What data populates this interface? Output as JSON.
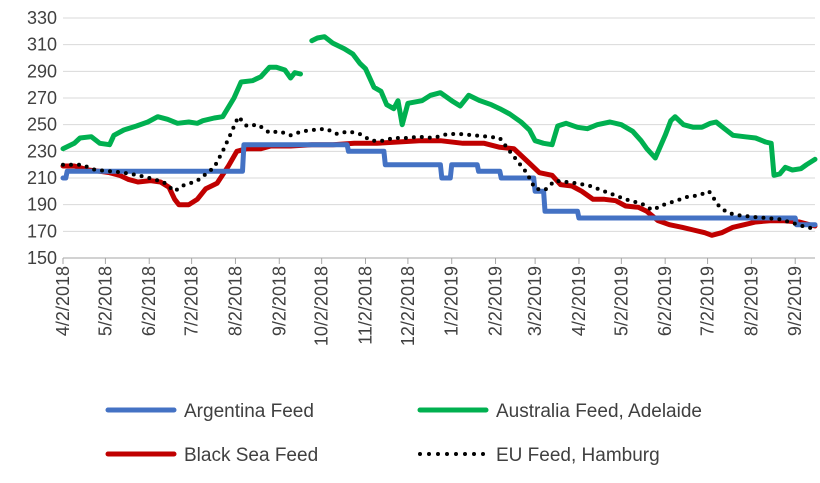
{
  "chart_data": {
    "type": "line",
    "title": "",
    "xlabel": "",
    "ylabel": "",
    "ylim": [
      150,
      330
    ],
    "yticks": [
      150,
      170,
      190,
      210,
      230,
      250,
      270,
      290,
      310,
      330
    ],
    "xlim": [
      "2018-04-02",
      "2019-09-16"
    ],
    "xtick_labels": [
      "4/2/2018",
      "5/2/2018",
      "6/2/2018",
      "7/2/2018",
      "8/2/2018",
      "9/2/2018",
      "10/2/2018",
      "11/2/2018",
      "12/2/2018",
      "1/2/2019",
      "2/2/2019",
      "3/2/2019",
      "4/2/2019",
      "5/2/2019",
      "6/2/2019",
      "7/2/2019",
      "8/2/2019",
      "9/2/2019"
    ],
    "xtick_dates": [
      "2018-04-02",
      "2018-05-02",
      "2018-06-02",
      "2018-07-02",
      "2018-08-02",
      "2018-09-02",
      "2018-10-02",
      "2018-11-02",
      "2018-12-02",
      "2019-01-02",
      "2019-02-02",
      "2019-03-02",
      "2019-04-02",
      "2019-05-02",
      "2019-06-02",
      "2019-07-02",
      "2019-08-02",
      "2019-09-02"
    ],
    "grid": "horizontal",
    "legend_position": "bottom",
    "series": [
      {
        "name": "Argentina Feed",
        "color": "#4472C4",
        "style": "solid",
        "points": [
          [
            "2018-04-02",
            210
          ],
          [
            "2018-04-04",
            210
          ],
          [
            "2018-04-05",
            215
          ],
          [
            "2018-06-18",
            215
          ],
          [
            "2018-08-07",
            215
          ],
          [
            "2018-08-08",
            235
          ],
          [
            "2018-10-20",
            235
          ],
          [
            "2018-10-21",
            230
          ],
          [
            "2018-11-15",
            230
          ],
          [
            "2018-11-16",
            220
          ],
          [
            "2018-12-25",
            220
          ],
          [
            "2018-12-26",
            210
          ],
          [
            "2019-01-01",
            210
          ],
          [
            "2019-01-02",
            220
          ],
          [
            "2019-01-20",
            220
          ],
          [
            "2019-01-21",
            215
          ],
          [
            "2019-02-05",
            215
          ],
          [
            "2019-02-06",
            210
          ],
          [
            "2019-03-01",
            210
          ],
          [
            "2019-03-02",
            200
          ],
          [
            "2019-03-08",
            200
          ],
          [
            "2019-03-09",
            185
          ],
          [
            "2019-04-01",
            185
          ],
          [
            "2019-04-02",
            180
          ],
          [
            "2019-09-02",
            180
          ],
          [
            "2019-09-03",
            175
          ],
          [
            "2019-09-16",
            175
          ]
        ]
      },
      {
        "name": "Australia Feed, Adelaide",
        "color": "#00B050",
        "style": "solid",
        "points": [
          [
            "2018-04-02",
            232
          ],
          [
            "2018-04-10",
            236
          ],
          [
            "2018-04-14",
            240
          ],
          [
            "2018-04-22",
            241
          ],
          [
            "2018-04-28",
            236
          ],
          [
            "2018-05-05",
            235
          ],
          [
            "2018-05-08",
            242
          ],
          [
            "2018-05-15",
            246
          ],
          [
            "2018-05-24",
            249
          ],
          [
            "2018-06-01",
            252
          ],
          [
            "2018-06-08",
            256
          ],
          [
            "2018-06-15",
            254
          ],
          [
            "2018-06-22",
            251
          ],
          [
            "2018-06-30",
            252
          ],
          [
            "2018-07-06",
            251
          ],
          [
            "2018-07-10",
            253
          ],
          [
            "2018-07-18",
            255
          ],
          [
            "2018-07-24",
            256
          ],
          [
            "2018-08-01",
            270
          ],
          [
            "2018-08-06",
            282
          ],
          [
            "2018-08-14",
            283
          ],
          [
            "2018-08-20",
            286
          ],
          [
            "2018-08-26",
            293
          ],
          [
            "2018-08-31",
            293
          ],
          [
            "2018-09-06",
            291
          ],
          [
            "2018-09-10",
            285
          ],
          [
            "2018-09-13",
            289
          ],
          [
            "2018-09-17",
            288
          ],
          null,
          [
            "2018-09-25",
            313
          ],
          [
            "2018-09-29",
            315
          ],
          [
            "2018-10-04",
            316
          ],
          [
            "2018-10-10",
            311
          ],
          [
            "2018-10-18",
            307
          ],
          [
            "2018-10-24",
            303
          ],
          [
            "2018-10-29",
            296
          ],
          [
            "2018-11-02",
            292
          ],
          [
            "2018-11-08",
            278
          ],
          [
            "2018-11-13",
            275
          ],
          [
            "2018-11-17",
            265
          ],
          [
            "2018-11-22",
            262
          ],
          [
            "2018-11-25",
            268
          ],
          [
            "2018-11-28",
            250
          ],
          [
            "2018-12-02",
            266
          ],
          [
            "2018-12-12",
            268
          ],
          [
            "2018-12-18",
            272
          ],
          [
            "2018-12-25",
            274
          ],
          [
            "2019-01-02",
            268
          ],
          [
            "2019-01-08",
            264
          ],
          [
            "2019-01-14",
            272
          ],
          [
            "2019-01-22",
            268
          ],
          [
            "2019-01-30",
            265
          ],
          [
            "2019-02-05",
            262
          ],
          [
            "2019-02-12",
            258
          ],
          [
            "2019-02-20",
            252
          ],
          [
            "2019-02-26",
            246
          ],
          [
            "2019-03-02",
            238
          ],
          [
            "2019-03-08",
            236
          ],
          [
            "2019-03-14",
            235
          ],
          [
            "2019-03-18",
            249
          ],
          [
            "2019-03-24",
            251
          ],
          [
            "2019-04-01",
            248
          ],
          [
            "2019-04-08",
            247
          ],
          [
            "2019-04-15",
            250
          ],
          [
            "2019-04-24",
            252
          ],
          [
            "2019-05-02",
            250
          ],
          [
            "2019-05-10",
            245
          ],
          [
            "2019-05-16",
            238
          ],
          [
            "2019-05-20",
            232
          ],
          [
            "2019-05-26",
            225
          ],
          [
            "2019-06-02",
            242
          ],
          [
            "2019-06-06",
            253
          ],
          [
            "2019-06-09",
            256
          ],
          [
            "2019-06-15",
            250
          ],
          [
            "2019-06-22",
            248
          ],
          [
            "2019-06-28",
            248
          ],
          [
            "2019-07-04",
            251
          ],
          [
            "2019-07-08",
            252
          ],
          [
            "2019-07-14",
            247
          ],
          [
            "2019-07-20",
            242
          ],
          [
            "2019-07-28",
            241
          ],
          [
            "2019-08-05",
            240
          ],
          [
            "2019-08-12",
            237
          ],
          [
            "2019-08-16",
            236
          ],
          [
            "2019-08-18",
            212
          ],
          [
            "2019-08-22",
            213
          ],
          [
            "2019-08-26",
            218
          ],
          [
            "2019-08-31",
            216
          ],
          [
            "2019-09-06",
            217
          ],
          [
            "2019-09-10",
            220
          ],
          [
            "2019-09-16",
            224
          ]
        ]
      },
      {
        "name": "Black Sea Feed",
        "color": "#C00000",
        "style": "solid",
        "points": [
          [
            "2018-04-02",
            219
          ],
          [
            "2018-04-10",
            219
          ],
          [
            "2018-04-20",
            216
          ],
          [
            "2018-04-28",
            215
          ],
          [
            "2018-05-05",
            214
          ],
          [
            "2018-05-12",
            212
          ],
          [
            "2018-05-18",
            209
          ],
          [
            "2018-05-25",
            207
          ],
          [
            "2018-06-03",
            208
          ],
          [
            "2018-06-10",
            207
          ],
          [
            "2018-06-16",
            203
          ],
          [
            "2018-06-20",
            194
          ],
          [
            "2018-06-23",
            190
          ],
          [
            "2018-06-30",
            190
          ],
          [
            "2018-07-06",
            194
          ],
          [
            "2018-07-12",
            202
          ],
          [
            "2018-07-20",
            206
          ],
          [
            "2018-07-28",
            219
          ],
          [
            "2018-08-03",
            230
          ],
          [
            "2018-08-10",
            232
          ],
          [
            "2018-08-20",
            232
          ],
          [
            "2018-08-27",
            234
          ],
          [
            "2018-09-10",
            234
          ],
          [
            "2018-09-25",
            235
          ],
          [
            "2018-10-10",
            235
          ],
          [
            "2018-10-25",
            236
          ],
          [
            "2018-11-10",
            236
          ],
          [
            "2018-11-25",
            237
          ],
          [
            "2018-12-10",
            238
          ],
          [
            "2018-12-25",
            238
          ],
          [
            "2019-01-10",
            236
          ],
          [
            "2019-01-25",
            236
          ],
          [
            "2019-02-05",
            233
          ],
          [
            "2019-02-15",
            232
          ],
          [
            "2019-02-25",
            222
          ],
          [
            "2019-03-05",
            214
          ],
          [
            "2019-03-14",
            212
          ],
          [
            "2019-03-20",
            205
          ],
          [
            "2019-03-28",
            204
          ],
          [
            "2019-04-04",
            200
          ],
          [
            "2019-04-12",
            194
          ],
          [
            "2019-04-20",
            194
          ],
          [
            "2019-04-28",
            193
          ],
          [
            "2019-05-05",
            189
          ],
          [
            "2019-05-14",
            188
          ],
          [
            "2019-05-20",
            185
          ],
          [
            "2019-05-28",
            178
          ],
          [
            "2019-06-05",
            175
          ],
          [
            "2019-06-14",
            173
          ],
          [
            "2019-06-22",
            171
          ],
          [
            "2019-06-30",
            169
          ],
          [
            "2019-07-05",
            167
          ],
          [
            "2019-07-12",
            169
          ],
          [
            "2019-07-20",
            173
          ],
          [
            "2019-07-28",
            175
          ],
          [
            "2019-08-05",
            177
          ],
          [
            "2019-08-15",
            178
          ],
          [
            "2019-08-25",
            178
          ],
          [
            "2019-09-05",
            177
          ],
          [
            "2019-09-12",
            175
          ],
          [
            "2019-09-16",
            174
          ]
        ]
      },
      {
        "name": "EU Feed, Hamburg",
        "color": "#000000",
        "style": "dotted",
        "points": [
          [
            "2018-04-02",
            220
          ],
          [
            "2018-04-15",
            220
          ],
          [
            "2018-04-25",
            216
          ],
          [
            "2018-05-06",
            215
          ],
          [
            "2018-05-15",
            214
          ],
          [
            "2018-05-25",
            212
          ],
          [
            "2018-06-02",
            210
          ],
          [
            "2018-06-12",
            207
          ],
          [
            "2018-06-20",
            200
          ],
          [
            "2018-06-25",
            204
          ],
          [
            "2018-07-01",
            206
          ],
          [
            "2018-07-06",
            208
          ],
          [
            "2018-07-12",
            213
          ],
          [
            "2018-07-18",
            218
          ],
          [
            "2018-07-24",
            230
          ],
          [
            "2018-07-30",
            244
          ],
          [
            "2018-08-04",
            256
          ],
          [
            "2018-08-10",
            249
          ],
          [
            "2018-08-18",
            250
          ],
          [
            "2018-08-26",
            244
          ],
          [
            "2018-09-02",
            245
          ],
          [
            "2018-09-10",
            242
          ],
          [
            "2018-09-18",
            245
          ],
          [
            "2018-09-26",
            246
          ],
          [
            "2018-10-05",
            247
          ],
          [
            "2018-10-13",
            243
          ],
          [
            "2018-10-21",
            245
          ],
          [
            "2018-10-29",
            243
          ],
          [
            "2018-11-06",
            238
          ],
          [
            "2018-11-14",
            238
          ],
          [
            "2018-11-22",
            240
          ],
          [
            "2018-12-01",
            240
          ],
          [
            "2018-12-10",
            241
          ],
          [
            "2018-12-20",
            240
          ],
          [
            "2018-12-30",
            243
          ],
          [
            "2019-01-08",
            243
          ],
          [
            "2019-01-18",
            242
          ],
          [
            "2019-01-28",
            241
          ],
          [
            "2019-02-05",
            240
          ],
          [
            "2019-02-12",
            230
          ],
          [
            "2019-02-18",
            222
          ],
          [
            "2019-02-24",
            214
          ],
          [
            "2019-03-02",
            202
          ],
          [
            "2019-03-09",
            201
          ],
          [
            "2019-03-16",
            208
          ],
          [
            "2019-03-24",
            207
          ],
          [
            "2019-04-01",
            206
          ],
          [
            "2019-04-10",
            204
          ],
          [
            "2019-04-20",
            200
          ],
          [
            "2019-04-30",
            196
          ],
          [
            "2019-05-08",
            193
          ],
          [
            "2019-05-16",
            191
          ],
          [
            "2019-05-24",
            186
          ],
          [
            "2019-06-01",
            190
          ],
          [
            "2019-06-10",
            193
          ],
          [
            "2019-06-18",
            196
          ],
          [
            "2019-06-26",
            197
          ],
          [
            "2019-07-03",
            200
          ],
          [
            "2019-07-10",
            189
          ],
          [
            "2019-07-16",
            184
          ],
          [
            "2019-07-24",
            182
          ],
          [
            "2019-08-02",
            181
          ],
          [
            "2019-08-12",
            180
          ],
          [
            "2019-08-22",
            179
          ],
          [
            "2019-09-01",
            176
          ],
          [
            "2019-09-10",
            173
          ],
          [
            "2019-09-16",
            172
          ]
        ]
      }
    ]
  }
}
